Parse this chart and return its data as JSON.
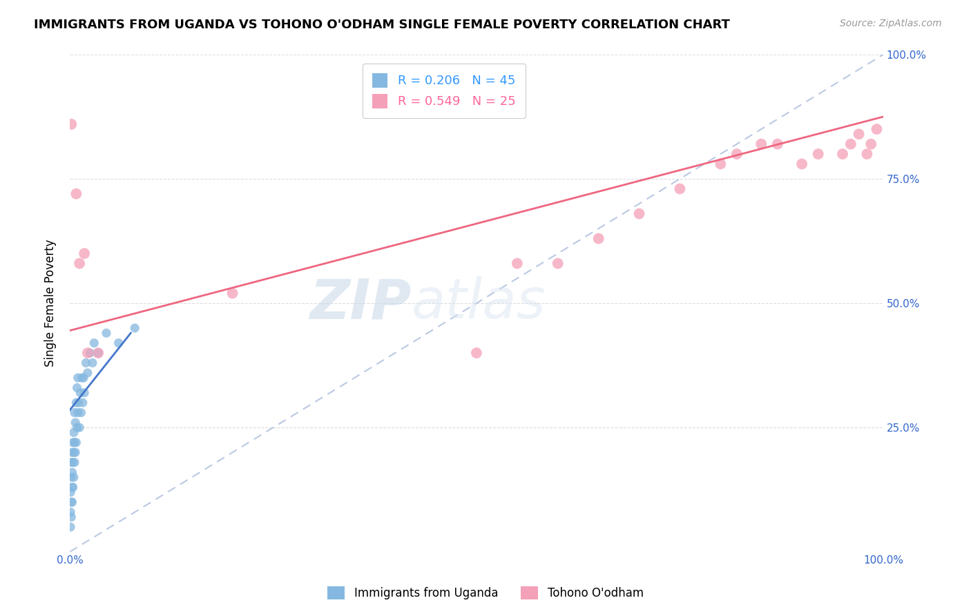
{
  "title": "IMMIGRANTS FROM UGANDA VS TOHONO O'ODHAM SINGLE FEMALE POVERTY CORRELATION CHART",
  "source": "Source: ZipAtlas.com",
  "ylabel": "Single Female Poverty",
  "legend_label_1": "Immigrants from Uganda",
  "legend_label_2": "Tohono O'odham",
  "r1": 0.206,
  "n1": 45,
  "r2": 0.549,
  "n2": 25,
  "color1": "#85B8E0",
  "color2": "#F4A0B8",
  "line1_color": "#4477CC",
  "line2_color": "#EE6680",
  "dashed_color": "#AABBDD",
  "xlim": [
    0.0,
    1.0
  ],
  "ylim": [
    0.0,
    1.0
  ],
  "blue_line_x0": 0.0,
  "blue_line_y0": 0.285,
  "blue_line_x1": 0.075,
  "blue_line_y1": 0.44,
  "pink_line_x0": 0.0,
  "pink_line_y0": 0.445,
  "pink_line_x1": 1.0,
  "pink_line_y1": 0.875,
  "scatter1_x": [
    0.001,
    0.001,
    0.001,
    0.002,
    0.002,
    0.002,
    0.002,
    0.003,
    0.003,
    0.003,
    0.003,
    0.004,
    0.004,
    0.004,
    0.005,
    0.005,
    0.005,
    0.006,
    0.006,
    0.006,
    0.007,
    0.007,
    0.008,
    0.008,
    0.009,
    0.009,
    0.01,
    0.01,
    0.011,
    0.012,
    0.013,
    0.014,
    0.015,
    0.016,
    0.017,
    0.018,
    0.02,
    0.022,
    0.025,
    0.028,
    0.03,
    0.035,
    0.045,
    0.06,
    0.08
  ],
  "scatter1_y": [
    0.05,
    0.08,
    0.12,
    0.07,
    0.1,
    0.15,
    0.18,
    0.1,
    0.13,
    0.16,
    0.2,
    0.13,
    0.18,
    0.22,
    0.15,
    0.2,
    0.24,
    0.18,
    0.22,
    0.28,
    0.2,
    0.26,
    0.22,
    0.3,
    0.25,
    0.33,
    0.28,
    0.35,
    0.3,
    0.25,
    0.32,
    0.28,
    0.35,
    0.3,
    0.35,
    0.32,
    0.38,
    0.36,
    0.4,
    0.38,
    0.42,
    0.4,
    0.44,
    0.42,
    0.45
  ],
  "scatter2_x": [
    0.002,
    0.008,
    0.012,
    0.018,
    0.022,
    0.035,
    0.2,
    0.5,
    0.55,
    0.6,
    0.65,
    0.7,
    0.75,
    0.8,
    0.82,
    0.85,
    0.87,
    0.9,
    0.92,
    0.95,
    0.96,
    0.97,
    0.98,
    0.985,
    0.992
  ],
  "scatter2_y": [
    0.86,
    0.72,
    0.58,
    0.6,
    0.4,
    0.4,
    0.52,
    0.4,
    0.58,
    0.58,
    0.63,
    0.68,
    0.73,
    0.78,
    0.8,
    0.82,
    0.82,
    0.78,
    0.8,
    0.8,
    0.82,
    0.84,
    0.8,
    0.82,
    0.85
  ]
}
